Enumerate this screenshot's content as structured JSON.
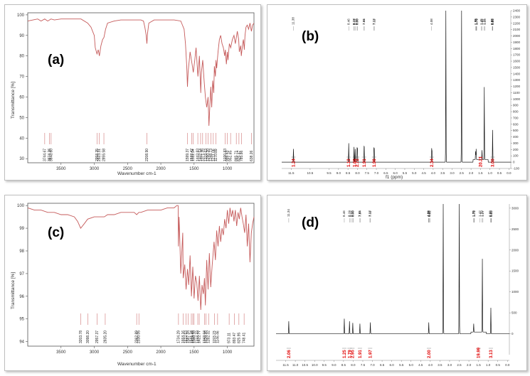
{
  "colors": {
    "ir_line": "#c55a5a",
    "nmr_line": "#1a1a1a",
    "integral": "#e00000",
    "frame": "#555555"
  },
  "chart_data": [
    {
      "id": "a",
      "type": "line",
      "panel_label": "(a)",
      "xlabel": "Wavenumber cm-1",
      "ylabel": "Transmittance [%]",
      "xlim": [
        4000,
        600
      ],
      "ylim": [
        28,
        101
      ],
      "xticks": [
        3500,
        3000,
        2500,
        2000,
        1500,
        1000
      ],
      "yticks": [
        30,
        40,
        50,
        60,
        70,
        80,
        90,
        100
      ],
      "series": [
        {
          "x": [
            4000,
            3850,
            3800,
            3746,
            3700,
            3650,
            3600,
            3500,
            3400,
            3300,
            3200,
            3100,
            3050,
            3000,
            2985,
            2960,
            2940,
            2923,
            2900,
            2875,
            2855,
            2830,
            2800,
            2700,
            2600,
            2500,
            2400,
            2300,
            2260,
            2240,
            2220,
            2209,
            2200,
            2180,
            2100,
            2000,
            1900,
            1800,
            1700,
            1650,
            1630,
            1610,
            1600,
            1590,
            1560,
            1530,
            1512,
            1490,
            1470,
            1443,
            1420,
            1400,
            1390,
            1370,
            1350,
            1330,
            1310,
            1290,
            1277,
            1260,
            1249,
            1235,
            1220,
            1204,
            1195,
            1180,
            1171,
            1160,
            1140,
            1120,
            1100,
            1080,
            1060,
            1040,
            1030,
            1015,
            1000,
            990,
            970,
            950,
            925,
            900,
            880,
            850,
            830,
            820,
            800,
            790,
            770,
            759,
            745,
            735,
            720,
            700,
            680,
            660,
            639,
            620,
            600
          ],
          "y": [
            97,
            98,
            97,
            98,
            97,
            98,
            97.5,
            98,
            98,
            98,
            98,
            96,
            94,
            90,
            84,
            81,
            83,
            80,
            85,
            88,
            89,
            93,
            96,
            97,
            97.5,
            97.5,
            97.5,
            97.5,
            97,
            94,
            90,
            86,
            91,
            96,
            97.5,
            97.5,
            97.5,
            97.5,
            97,
            93,
            86,
            75,
            65,
            72,
            82,
            76,
            72,
            78,
            84,
            70,
            80,
            62,
            72,
            78,
            68,
            60,
            55,
            60,
            46,
            58,
            65,
            55,
            68,
            62,
            75,
            70,
            78,
            74,
            82,
            88,
            90,
            86,
            84,
            80,
            83,
            76,
            82,
            78,
            86,
            84,
            88,
            90,
            86,
            92,
            88,
            82,
            85,
            80,
            86,
            88,
            83,
            90,
            94,
            95,
            93,
            96,
            92,
            95,
            96
          ]
        }
      ],
      "peaks": [
        "3744.67",
        "3674.26",
        "3648.60",
        "2958.35",
        "2923.31",
        "2855.58",
        "2208.90",
        "1599.37",
        "1533.42",
        "1511.94",
        "1443.83",
        "1402.54",
        "1371.35",
        "1319.63",
        "1290.20",
        "1248.73",
        "1211.06",
        "1170.89",
        "1030.83",
        "999.43",
        "951.65",
        "865.71",
        "825.47",
        "785.86",
        "638.26"
      ]
    },
    {
      "id": "b",
      "type": "line",
      "panel_label": "(b)",
      "xlabel": "f1 (ppm)",
      "xlim": [
        12,
        -0.1
      ],
      "ylim": [
        -100,
        2400
      ],
      "xticks": [
        "11.5",
        "10.5",
        "9.5",
        "9.0",
        "8.5",
        "8.0",
        "7.5",
        "7.0",
        "6.5",
        "6.0",
        "5.5",
        "5.0",
        "4.5",
        "4.0",
        "3.5",
        "3.0",
        "2.5",
        "2.0",
        "1.5",
        "1.0",
        "0.5",
        "0.0"
      ],
      "yticks": [
        -100,
        0,
        100,
        200,
        300,
        400,
        500,
        600,
        700,
        800,
        900,
        1000,
        1100,
        1200,
        1300,
        1400,
        1500,
        1600,
        1700,
        1800,
        1900,
        2000,
        2100,
        2200,
        2300,
        2400
      ],
      "peaks": [
        {
          "shift": 11.38,
          "height": 210
        },
        {
          "shift": 8.46,
          "height": 300
        },
        {
          "shift": 8.18,
          "height": 240
        },
        {
          "shift": 8.12,
          "height": 210
        },
        {
          "shift": 8.02,
          "height": 220
        },
        {
          "shift": 8.0,
          "height": 210
        },
        {
          "shift": 7.65,
          "height": 170
        },
        {
          "shift": 7.64,
          "height": 160
        },
        {
          "shift": 7.13,
          "height": 220
        },
        {
          "shift": 7.11,
          "height": 200
        },
        {
          "shift": 4.08,
          "height": 210
        },
        {
          "shift": 4.06,
          "height": 170
        },
        {
          "shift": 3.33,
          "height": 2400
        },
        {
          "shift": 2.5,
          "height": 2400
        },
        {
          "shift": 1.76,
          "height": 130
        },
        {
          "shift": 1.73,
          "height": 170
        },
        {
          "shift": 1.42,
          "height": 150
        },
        {
          "shift": 1.3,
          "height": 1150
        },
        {
          "shift": 0.86,
          "height": 510
        }
      ],
      "top_labels": [
        "11.38",
        "8.46",
        "8.18",
        "8.17",
        "8.12",
        "8.02",
        "8.00",
        "7.65",
        "7.64",
        "7.13",
        "7.11",
        "4.08",
        "1.75",
        "1.73",
        "1.72",
        "1.70",
        "1.45",
        "1.41",
        "1.31",
        "1.26",
        "0.88",
        "0.86",
        "0.85"
      ],
      "integrals": [
        {
          "shift": 11.38,
          "value": "1.24"
        },
        {
          "shift": 8.46,
          "value": "1.12"
        },
        {
          "shift": 8.15,
          "value": "1.66"
        },
        {
          "shift": 8.01,
          "value": "2.72"
        },
        {
          "shift": 7.65,
          "value": "1.91"
        },
        {
          "shift": 7.12,
          "value": "1.96"
        },
        {
          "shift": 4.07,
          "value": "2.34"
        },
        {
          "shift": 1.5,
          "value": "20.21"
        },
        {
          "shift": 0.86,
          "value": "3.00"
        }
      ]
    },
    {
      "id": "c",
      "type": "line",
      "panel_label": "(c)",
      "xlabel": "Wavenumber cm-1",
      "ylabel": "Transmittance [%]",
      "xlim": [
        4000,
        600
      ],
      "ylim": [
        93.8,
        100.1
      ],
      "xticks": [
        3500,
        3000,
        2500,
        2000,
        1500,
        1000
      ],
      "yticks": [
        94,
        95,
        96,
        97,
        98,
        99,
        100
      ],
      "series": [
        {
          "x": [
            4000,
            3900,
            3800,
            3700,
            3600,
            3500,
            3400,
            3300,
            3250,
            3204,
            3150,
            3100,
            3000,
            2950,
            2900,
            2850,
            2800,
            2700,
            2600,
            2500,
            2400,
            2363,
            2330,
            2300,
            2200,
            2100,
            2000,
            1900,
            1800,
            1760,
            1740,
            1735,
            1725,
            1700,
            1670,
            1664,
            1640,
            1620,
            1600,
            1580,
            1560,
            1540,
            1520,
            1500,
            1480,
            1460,
            1440,
            1420,
            1400,
            1380,
            1360,
            1344,
            1330,
            1310,
            1290,
            1270,
            1250,
            1230,
            1200,
            1180,
            1160,
            1140,
            1120,
            1100,
            1080,
            1060,
            1040,
            1020,
            1000,
            980,
            960,
            940,
            920,
            900,
            880,
            860,
            840,
            820,
            800,
            780,
            760,
            740,
            720,
            700,
            680,
            660,
            640,
            620,
            600
          ],
          "y": [
            99.9,
            99.8,
            99.8,
            99.7,
            99.7,
            99.6,
            99.6,
            99.5,
            99.3,
            99.0,
            99.2,
            99.4,
            99.5,
            99.5,
            99.5,
            99.5,
            99.6,
            99.6,
            99.7,
            99.7,
            99.7,
            99.6,
            99.7,
            99.7,
            99.8,
            99.8,
            99.8,
            99.9,
            99.9,
            100,
            100,
            98.2,
            99.5,
            97.0,
            98.8,
            96.8,
            97.4,
            96.3,
            97.2,
            96.5,
            97.8,
            96.0,
            97.3,
            95.9,
            96.9,
            96.6,
            95.8,
            96.9,
            95.4,
            96.5,
            96.1,
            96.8,
            95.6,
            97.6,
            96.3,
            97.9,
            96.4,
            97.3,
            98.4,
            97.6,
            98.9,
            98.2,
            99.1,
            98.4,
            99.0,
            98.7,
            99.4,
            99.0,
            99.8,
            99.2,
            99.9,
            99.5,
            99.8,
            99.3,
            99.8,
            99.1,
            99.7,
            99.4,
            99.9,
            99.5,
            99.2,
            98.8,
            99.6,
            98.2,
            99.2,
            97.5,
            98.8,
            99.2,
            99.5
          ]
        }
      ],
      "peaks": [
        "3203.78",
        "3098.20",
        "2957.37",
        "2835.20",
        "2362.89",
        "2330.05",
        "1734.29",
        "1664.16",
        "1622.53",
        "1587.34",
        "1541.24",
        "1519.45",
        "1500.18",
        "1444.43",
        "1422.77",
        "1343.04",
        "1320.26",
        "1282.32",
        "1193.23",
        "1146.46",
        "973.11",
        "893.47",
        "825.95",
        "748.41"
      ]
    },
    {
      "id": "d",
      "type": "line",
      "panel_label": "(d)",
      "xlabel": "f1 (ppm)",
      "xlim": [
        12,
        -0.1
      ],
      "ylim": [
        -500,
        3100
      ],
      "xticks": [
        "11.5",
        "11.0",
        "10.5",
        "10.0",
        "9.5",
        "9.0",
        "8.5",
        "8.0",
        "7.5",
        "7.0",
        "6.5",
        "6.0",
        "5.5",
        "5.0",
        "4.5",
        "4.0",
        "3.5",
        "3.0",
        "2.5",
        "2.0",
        "1.5",
        "1.0",
        "0.5",
        "0.0"
      ],
      "yticks": [
        0,
        500,
        1000,
        1500,
        2000,
        2500,
        3000
      ],
      "peaks": [
        {
          "shift": 11.34,
          "height": 300
        },
        {
          "shift": 8.46,
          "height": 360
        },
        {
          "shift": 8.19,
          "height": 300
        },
        {
          "shift": 8.02,
          "height": 260
        },
        {
          "shift": 7.65,
          "height": 240
        },
        {
          "shift": 7.11,
          "height": 270
        },
        {
          "shift": 4.08,
          "height": 270
        },
        {
          "shift": 3.33,
          "height": 3100
        },
        {
          "shift": 2.5,
          "height": 3100
        },
        {
          "shift": 1.75,
          "height": 200
        },
        {
          "shift": 1.3,
          "height": 1750
        },
        {
          "shift": 0.86,
          "height": 620
        }
      ],
      "top_labels": [
        "11.34",
        "8.46",
        "8.19",
        "8.12",
        "8.02",
        "8.00",
        "7.65",
        "7.64",
        "7.13",
        "7.11",
        "4.09",
        "4.08",
        "4.06",
        "4.02",
        "1.75",
        "1.73",
        "1.72",
        "1.42",
        "1.32",
        "1.27",
        "0.88",
        "0.85",
        "0.83"
      ],
      "integrals": [
        {
          "shift": 11.34,
          "value": "2.06"
        },
        {
          "shift": 8.46,
          "value": "1.25"
        },
        {
          "shift": 8.19,
          "value": "1.79"
        },
        {
          "shift": 8.04,
          "value": "2.95"
        },
        {
          "shift": 7.65,
          "value": "1.91"
        },
        {
          "shift": 7.12,
          "value": "1.97"
        },
        {
          "shift": 4.07,
          "value": "2.00"
        },
        {
          "shift": 1.5,
          "value": "19.99"
        },
        {
          "shift": 0.86,
          "value": "3.13"
        }
      ]
    }
  ]
}
